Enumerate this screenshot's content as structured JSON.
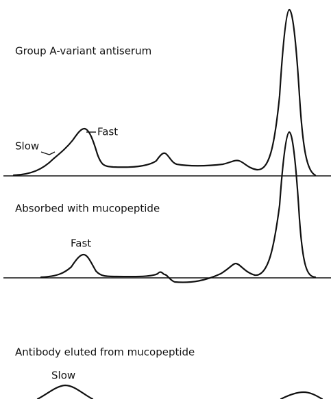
{
  "panels": [
    {
      "title": "Group A-variant antiserum",
      "labels": [
        "Slow",
        "Fast"
      ]
    },
    {
      "title": "Absorbed with mucopeptide",
      "labels": [
        "Fast"
      ]
    },
    {
      "title": "Antibody eluted from mucopeptide",
      "labels": [
        "Slow"
      ]
    }
  ]
}
